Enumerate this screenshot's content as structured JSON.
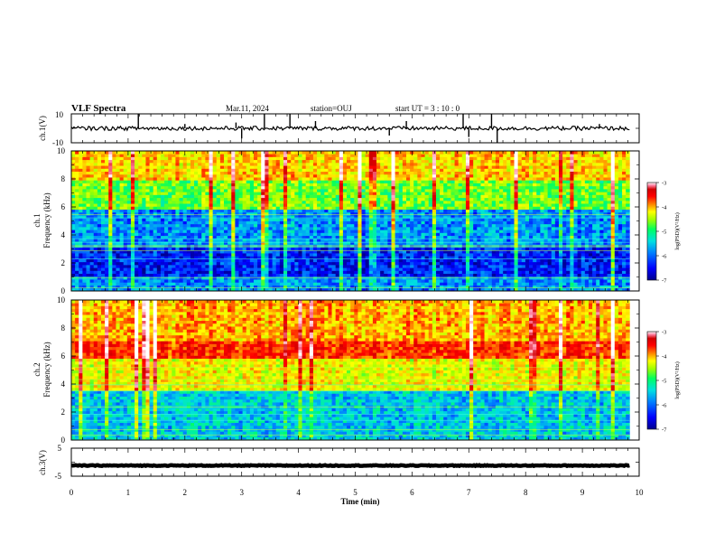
{
  "header": {
    "title": "VLF Spectra",
    "date": "Mar.11, 2024",
    "station": "station=OUJ",
    "start_time": "start  UT =   3 : 10 : 0"
  },
  "chart_data": [
    {
      "type": "line",
      "ylabel": "ch.1(V)",
      "ylim": [
        -10,
        10
      ],
      "ytick_labels": [
        "10",
        "-10"
      ],
      "baseline": 0,
      "noise_amplitude": 1.4,
      "spikes": [
        {
          "x": 1.18,
          "y": 10
        },
        {
          "x": 2.0,
          "y": 3
        },
        {
          "x": 2.9,
          "y": 4
        },
        {
          "x": 3.0,
          "y": -7
        },
        {
          "x": 3.4,
          "y": 10
        },
        {
          "x": 3.85,
          "y": 10
        },
        {
          "x": 4.3,
          "y": 5
        },
        {
          "x": 5.6,
          "y": -5
        },
        {
          "x": 5.9,
          "y": 5
        },
        {
          "x": 6.9,
          "y": 10
        },
        {
          "x": 7.0,
          "y": -6
        },
        {
          "x": 7.4,
          "y": 10
        },
        {
          "x": 7.5,
          "y": -10
        },
        {
          "x": 9.3,
          "y": 3
        }
      ]
    },
    {
      "type": "heatmap",
      "ylabel": "Frequency (kHz)",
      "channel_label": "ch.1",
      "ylim": [
        0,
        10
      ],
      "ytick_labels": [
        "0",
        "2",
        "4",
        "6",
        "8",
        "10"
      ],
      "colorbar": {
        "range": [
          -7,
          -3
        ],
        "tick_labels": [
          "-3",
          "-4",
          "-5",
          "-6",
          "-7"
        ],
        "label": "log(PSD)(V²/Hz)"
      },
      "bands": [
        {
          "f": [
            0,
            1.0
          ],
          "level": -6.2
        },
        {
          "f": [
            1.0,
            3.2
          ],
          "level": -6.6
        },
        {
          "f": [
            3.2,
            5.8
          ],
          "level": -6.2
        },
        {
          "f": [
            5.8,
            8.0
          ],
          "level": -5.3
        },
        {
          "f": [
            8.0,
            10
          ],
          "level": -4.7
        }
      ]
    },
    {
      "type": "heatmap",
      "ylabel": "Frequency (kHz)",
      "channel_label": "ch.2",
      "ylim": [
        0,
        10
      ],
      "ytick_labels": [
        "0",
        "2",
        "4",
        "6",
        "8",
        "10"
      ],
      "colorbar": {
        "range": [
          -7,
          -3
        ],
        "tick_labels": [
          "-3",
          "-4",
          "-5",
          "-6",
          "-7"
        ],
        "label": "log(PSD)(V²/Hz)"
      },
      "bands": [
        {
          "f": [
            0,
            3.5
          ],
          "level": -6.0
        },
        {
          "f": [
            3.5,
            5.8
          ],
          "level": -4.9
        },
        {
          "f": [
            5.8,
            7.0
          ],
          "level": -4.2
        },
        {
          "f": [
            7.0,
            10
          ],
          "level": -4.6
        }
      ]
    },
    {
      "type": "line",
      "ylabel": "ch.3(V)",
      "ylim": [
        -5,
        5
      ],
      "ytick_labels": [
        "5",
        "-5"
      ],
      "baseline": -1.2,
      "noise_amplitude": 0.15
    }
  ],
  "xaxis": {
    "label": "Time (min)",
    "range": [
      0,
      10
    ],
    "tick_labels": [
      "0",
      "1",
      "2",
      "3",
      "4",
      "5",
      "6",
      "7",
      "8",
      "9",
      "10"
    ],
    "data_end": 9.83
  },
  "colors": {
    "colormap": [
      "#00008c",
      "#0000ff",
      "#0080ff",
      "#00e0e0",
      "#00ff60",
      "#a0ff00",
      "#ffff00",
      "#ff8000",
      "#ff0000",
      "#d00000",
      "#ff80a0",
      "#ffffff"
    ]
  }
}
